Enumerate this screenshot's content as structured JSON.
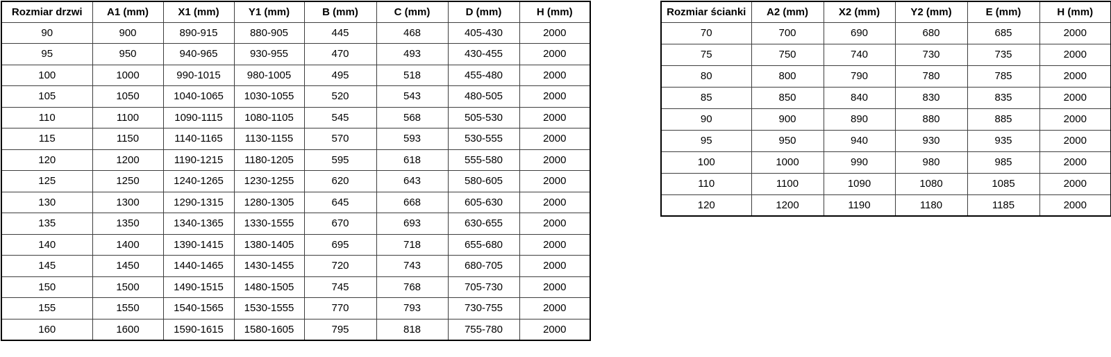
{
  "tables": [
    {
      "name": "door-dimensions-table",
      "headers": [
        "Rozmiar drzwi",
        "A1 (mm)",
        "X1 (mm)",
        "Y1 (mm)",
        "B (mm)",
        "C (mm)",
        "D (mm)",
        "H (mm)"
      ],
      "rows": [
        [
          "90",
          "900",
          "890-915",
          "880-905",
          "445",
          "468",
          "405-430",
          "2000"
        ],
        [
          "95",
          "950",
          "940-965",
          "930-955",
          "470",
          "493",
          "430-455",
          "2000"
        ],
        [
          "100",
          "1000",
          "990-1015",
          "980-1005",
          "495",
          "518",
          "455-480",
          "2000"
        ],
        [
          "105",
          "1050",
          "1040-1065",
          "1030-1055",
          "520",
          "543",
          "480-505",
          "2000"
        ],
        [
          "110",
          "1100",
          "1090-1115",
          "1080-1105",
          "545",
          "568",
          "505-530",
          "2000"
        ],
        [
          "115",
          "1150",
          "1140-1165",
          "1130-1155",
          "570",
          "593",
          "530-555",
          "2000"
        ],
        [
          "120",
          "1200",
          "1190-1215",
          "1180-1205",
          "595",
          "618",
          "555-580",
          "2000"
        ],
        [
          "125",
          "1250",
          "1240-1265",
          "1230-1255",
          "620",
          "643",
          "580-605",
          "2000"
        ],
        [
          "130",
          "1300",
          "1290-1315",
          "1280-1305",
          "645",
          "668",
          "605-630",
          "2000"
        ],
        [
          "135",
          "1350",
          "1340-1365",
          "1330-1555",
          "670",
          "693",
          "630-655",
          "2000"
        ],
        [
          "140",
          "1400",
          "1390-1415",
          "1380-1405",
          "695",
          "718",
          "655-680",
          "2000"
        ],
        [
          "145",
          "1450",
          "1440-1465",
          "1430-1455",
          "720",
          "743",
          "680-705",
          "2000"
        ],
        [
          "150",
          "1500",
          "1490-1515",
          "1480-1505",
          "745",
          "768",
          "705-730",
          "2000"
        ],
        [
          "155",
          "1550",
          "1540-1565",
          "1530-1555",
          "770",
          "793",
          "730-755",
          "2000"
        ],
        [
          "160",
          "1600",
          "1590-1615",
          "1580-1605",
          "795",
          "818",
          "755-780",
          "2000"
        ]
      ]
    },
    {
      "name": "wall-dimensions-table",
      "headers": [
        "Rozmiar ścianki",
        "A2 (mm)",
        "X2 (mm)",
        "Y2 (mm)",
        "E (mm)",
        "H (mm)"
      ],
      "rows": [
        [
          "70",
          "700",
          "690",
          "680",
          "685",
          "2000"
        ],
        [
          "75",
          "750",
          "740",
          "730",
          "735",
          "2000"
        ],
        [
          "80",
          "800",
          "790",
          "780",
          "785",
          "2000"
        ],
        [
          "85",
          "850",
          "840",
          "830",
          "835",
          "2000"
        ],
        [
          "90",
          "900",
          "890",
          "880",
          "885",
          "2000"
        ],
        [
          "95",
          "950",
          "940",
          "930",
          "935",
          "2000"
        ],
        [
          "100",
          "1000",
          "990",
          "980",
          "985",
          "2000"
        ],
        [
          "110",
          "1100",
          "1090",
          "1080",
          "1085",
          "2000"
        ],
        [
          "120",
          "1200",
          "1190",
          "1180",
          "1185",
          "2000"
        ]
      ]
    }
  ],
  "colors": {
    "background": "#ffffff",
    "outer_border": "#000000",
    "inner_border": "#3d3d3d",
    "text": "#000000"
  }
}
